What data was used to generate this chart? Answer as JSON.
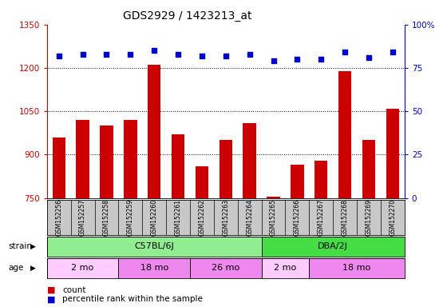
{
  "title": "GDS2929 / 1423213_at",
  "samples": [
    "GSM152256",
    "GSM152257",
    "GSM152258",
    "GSM152259",
    "GSM152260",
    "GSM152261",
    "GSM152262",
    "GSM152263",
    "GSM152264",
    "GSM152265",
    "GSM152266",
    "GSM152267",
    "GSM152268",
    "GSM152269",
    "GSM152270"
  ],
  "counts": [
    960,
    1020,
    1000,
    1020,
    1210,
    970,
    860,
    950,
    1010,
    755,
    865,
    880,
    1190,
    950,
    1060
  ],
  "percentile_ranks": [
    82,
    83,
    83,
    83,
    85,
    83,
    82,
    82,
    83,
    79,
    80,
    80,
    84,
    81,
    84
  ],
  "ylim_left": [
    750,
    1350
  ],
  "ylim_right": [
    0,
    100
  ],
  "yticks_left": [
    750,
    900,
    1050,
    1200,
    1350
  ],
  "yticks_right": [
    0,
    25,
    50,
    75,
    100
  ],
  "strain_groups": [
    {
      "label": "C57BL/6J",
      "start": 0,
      "end": 9,
      "color": "#90EE90"
    },
    {
      "label": "DBA/2J",
      "start": 9,
      "end": 15,
      "color": "#44DD44"
    }
  ],
  "age_groups": [
    {
      "label": "2 mo",
      "start": 0,
      "end": 3,
      "color": "#FFCCFF"
    },
    {
      "label": "18 mo",
      "start": 3,
      "end": 6,
      "color": "#EE88EE"
    },
    {
      "label": "26 mo",
      "start": 6,
      "end": 9,
      "color": "#EE88EE"
    },
    {
      "label": "2 mo",
      "start": 9,
      "end": 11,
      "color": "#FFCCFF"
    },
    {
      "label": "18 mo",
      "start": 11,
      "end": 15,
      "color": "#EE88EE"
    }
  ],
  "bar_color": "#CC0000",
  "dot_color": "#0000CC",
  "left_axis_color": "#CC0000",
  "right_axis_color": "#0000CC",
  "bg_color": "#FFFFFF",
  "tick_area_color": "#C8C8C8"
}
